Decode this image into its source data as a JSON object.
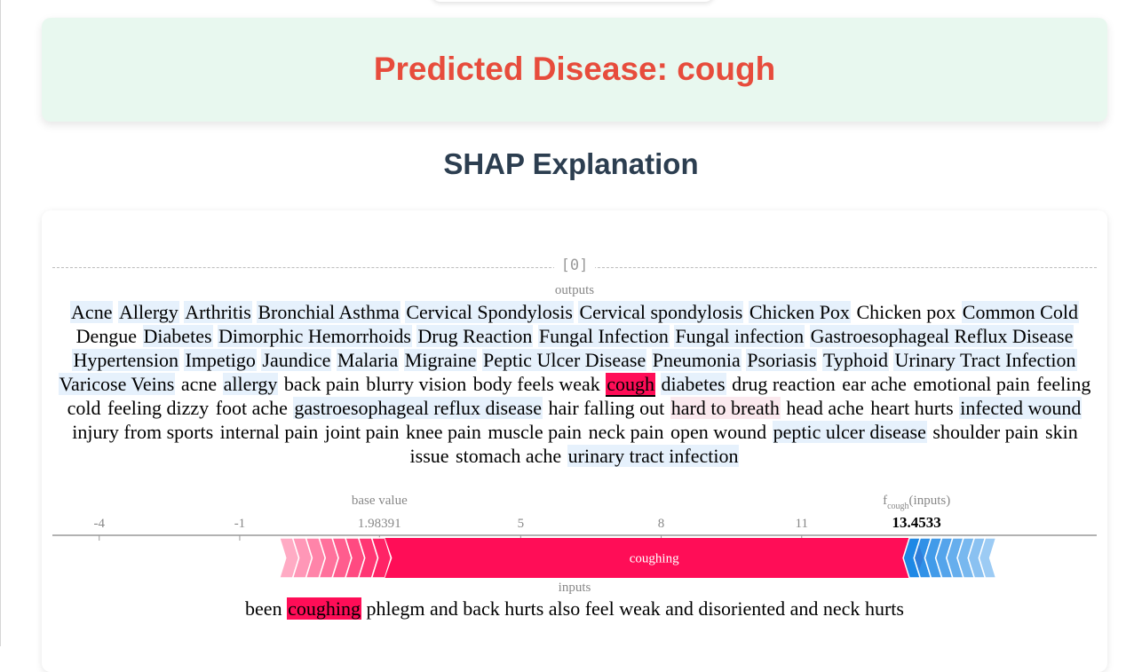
{
  "prediction": {
    "prefix": "Predicted Disease: ",
    "disease": "cough",
    "color": "#e74c3c",
    "background": "#e8f8ef"
  },
  "section": {
    "title": "SHAP Explanation"
  },
  "shap": {
    "index_label": "[0]",
    "outputs_label": "outputs",
    "output_classes": [
      "Acne",
      "Allergy",
      "Arthritis",
      "Bronchial Asthma",
      "Cervical Spondylosis",
      "Cervical spondylosis",
      "Chicken Pox",
      "Chicken pox",
      "Common Cold",
      "Dengue",
      "Diabetes",
      "Dimorphic Hemorrhoids",
      "Drug Reaction",
      "Fungal Infection",
      "Fungal infection",
      "Gastroesophageal Reflux Disease",
      "Hypertension",
      "Impetigo",
      "Jaundice",
      "Malaria",
      "Migraine",
      "Peptic Ulcer Disease",
      "Pneumonia",
      "Psoriasis",
      "Typhoid",
      "Urinary Tract Infection",
      "Varicose Veins",
      "acne",
      "allergy",
      "back pain",
      "blurry vision",
      "body feels weak",
      "cough",
      "diabetes",
      "drug reaction",
      "ear ache",
      "emotional pain",
      "feeling cold",
      "feeling dizzy",
      "foot ache",
      "gastroesophageal reflux disease",
      "hair falling out",
      "hard to breath",
      "head ache",
      "heart hurts",
      "infected wound",
      "injury from sports",
      "internal pain",
      "joint pain",
      "knee pain",
      "muscle pain",
      "neck pain",
      "open wound",
      "peptic ulcer disease",
      "shoulder pain",
      "skin issue",
      "stomach ache",
      "urinary tract infection"
    ],
    "light_highlight": [
      "Acne",
      "Allergy",
      "Arthritis",
      "Cervical Spondylosis",
      "Cervical spondylosis",
      "Chicken Pox",
      "Common Cold",
      "Diabetes",
      "Dimorphic Hemorrhoids",
      "Drug Reaction",
      "Fungal Infection",
      "Fungal infection",
      "Gastroesophageal Reflux Disease",
      "Impetigo",
      "Jaundice",
      "Malaria",
      "Migraine",
      "Peptic Ulcer Disease",
      "Pneumonia",
      "Psoriasis",
      "Typhoid",
      "Urinary Tract Infection",
      "Varicose Veins",
      "allergy",
      "diabetes",
      "gastroesophageal reflux disease",
      "peptic ulcer disease",
      "urinary tract infection",
      "Bronchial Asthma",
      "Hypertension",
      "infected wound"
    ],
    "pink_highlight": [
      "hard to breath"
    ],
    "selected_output": "cough",
    "selected_color": "#ff0d57",
    "force_plot": {
      "base_value_label": "base value",
      "fx_prefix": "f",
      "fx_subscript": "cough",
      "fx_suffix": "(inputs)",
      "axis_min": -5,
      "axis_max": 17.3,
      "ticks": [
        {
          "value": -4,
          "label": "-4"
        },
        {
          "value": -1,
          "label": "-1"
        },
        {
          "value": 1.98391,
          "label": "1.98391"
        },
        {
          "value": 5,
          "label": "5"
        },
        {
          "value": 8,
          "label": "8"
        },
        {
          "value": 11,
          "label": "11"
        }
      ],
      "base_value": 1.98391,
      "output_value": 13.4533,
      "output_label": "13.4533",
      "positive_color": "#ff0d57",
      "negative_color": "#1e88e5",
      "positive_feature": {
        "label": "coughing",
        "start": 2.1,
        "end": 13.45
      },
      "positive_small_start": -0.15,
      "negative_start": 13.3,
      "negative_end": 15.15
    },
    "inputs_label": "inputs",
    "input_tokens": [
      {
        "text": "been",
        "hot": false
      },
      {
        "text": "coughing",
        "hot": true
      },
      {
        "text": "phlegm",
        "hot": false
      },
      {
        "text": "and",
        "hot": false
      },
      {
        "text": "back",
        "hot": false
      },
      {
        "text": "hurts",
        "hot": false
      },
      {
        "text": "also",
        "hot": false
      },
      {
        "text": "feel",
        "hot": false
      },
      {
        "text": "weak",
        "hot": false
      },
      {
        "text": "and",
        "hot": false
      },
      {
        "text": "disoriented",
        "hot": false
      },
      {
        "text": "and",
        "hot": false
      },
      {
        "text": "neck",
        "hot": false
      },
      {
        "text": "hurts",
        "hot": false
      }
    ]
  }
}
